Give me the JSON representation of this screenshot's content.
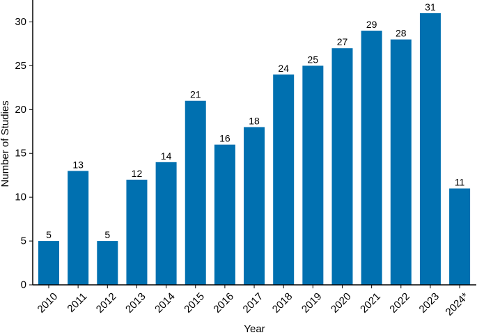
{
  "chart_data": {
    "type": "bar",
    "categories": [
      "2010",
      "2011",
      "2012",
      "2013",
      "2014",
      "2015",
      "2016",
      "2017",
      "2018",
      "2019",
      "2020",
      "2021",
      "2022",
      "2023",
      "2024*"
    ],
    "values": [
      5,
      13,
      5,
      12,
      14,
      21,
      16,
      18,
      24,
      25,
      27,
      29,
      28,
      31,
      11
    ],
    "xlabel": "Year",
    "ylabel": "Number of Studies",
    "ylim": [
      0,
      32.5
    ],
    "yticks": [
      0,
      5,
      10,
      15,
      20,
      25,
      30
    ],
    "bar_color": "#0070B0",
    "grid": false,
    "data_labels": true
  }
}
